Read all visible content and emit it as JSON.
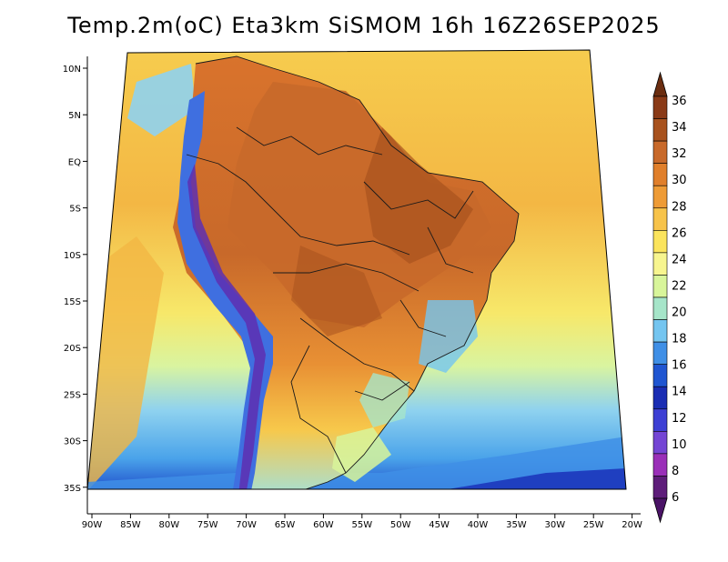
{
  "title": "Temp.2m(oC) Eta3km SiSMOM 16h 16Z26SEP2025",
  "map": {
    "lat_ticks": [
      "10N",
      "5N",
      "EQ",
      "5S",
      "10S",
      "15S",
      "20S",
      "25S",
      "30S",
      "35S"
    ],
    "lon_ticks": [
      "90W",
      "85W",
      "80W",
      "75W",
      "70W",
      "65W",
      "60W",
      "55W",
      "50W",
      "45W",
      "40W",
      "35W",
      "30W",
      "25W",
      "20W"
    ]
  },
  "colorbar": {
    "labels": [
      "36",
      "34",
      "32",
      "30",
      "28",
      "26",
      "24",
      "22",
      "20",
      "18",
      "16",
      "14",
      "12",
      "10",
      "8",
      "6"
    ],
    "colors": [
      "#8a3a17",
      "#a8521e",
      "#c8692a",
      "#e07f2b",
      "#ee9b36",
      "#f7c34a",
      "#fbe45c",
      "#f7f58f",
      "#d8f59a",
      "#a6e5c9",
      "#74c5f0",
      "#3f8fe6",
      "#1f55d1",
      "#1a2db3",
      "#3d3fd4",
      "#7445d4",
      "#9a2fb8",
      "#5e1d7a"
    ],
    "top_color": "#6b2d10",
    "bottom_color": "#4a1366"
  }
}
